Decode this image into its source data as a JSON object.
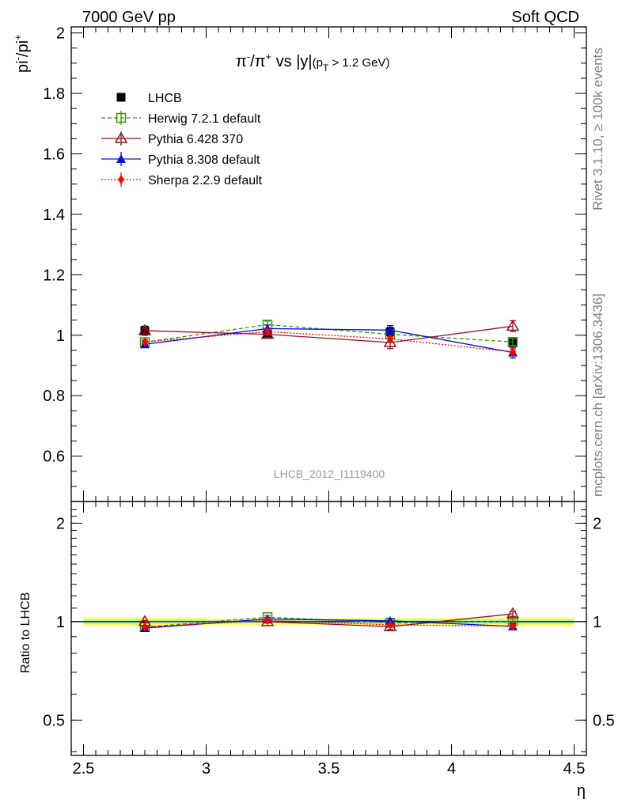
{
  "header": {
    "left": "7000 GeV pp",
    "right": "Soft QCD"
  },
  "side": {
    "rivet": "Rivet 3.1.10, ≥ 100k events",
    "mcplots": "mcplots.cern.ch [arXiv:1306.3436]"
  },
  "chart_data": {
    "type": "scatter",
    "title_parts": {
      "a": "π",
      "a_sup": "-",
      "b": "/π",
      "b_sup": "+",
      "c": " vs |y|",
      "d": "(p",
      "d_sub": "T",
      "e": " > 1.2 GeV)"
    },
    "ylabel_parts": {
      "a": "pi",
      "a_sup": "-",
      "b": "/pi",
      "b_sup": "+"
    },
    "ratio_ylabel": "Ratio to LHCB",
    "xlabel": "η",
    "watermark": "LHCB_2012_I1119400",
    "xlim": [
      2.45,
      4.55
    ],
    "ylim": [
      0.45,
      2.02
    ],
    "ratio_ylim": [
      0.39,
      2.33
    ],
    "x_ticks": [
      "2.5",
      "3",
      "3.5",
      "4",
      "4.5"
    ],
    "y_ticks": [
      "0.6",
      "0.8",
      "1",
      "1.2",
      "1.4",
      "1.6",
      "1.8",
      "2"
    ],
    "ratio_y_ticks": [
      "0.5",
      "1",
      "2"
    ],
    "x": [
      2.75,
      3.25,
      3.75,
      4.25
    ],
    "series": [
      {
        "name": "LHCB",
        "color": "#000000",
        "marker": "square-filled",
        "line": "none",
        "values": [
          1.015,
          1.003,
          1.011,
          0.975
        ],
        "errors": [
          0.015,
          0.012,
          0.015,
          0.015
        ]
      },
      {
        "name": "Herwig 7.2.1 default",
        "color": "#339900",
        "marker": "square-open",
        "line": "dashed",
        "values": [
          0.977,
          1.035,
          1.003,
          0.978
        ],
        "errors": [
          0.008,
          0.012,
          0.012,
          0.012
        ]
      },
      {
        "name": "Pythia 6.428 370",
        "color": "#991122",
        "marker": "triangle-open",
        "line": "solid",
        "values": [
          1.015,
          1.003,
          0.976,
          1.03
        ],
        "errors": [
          0.008,
          0.01,
          0.02,
          0.018
        ]
      },
      {
        "name": "Pythia 8.308 default",
        "color": "#0011dd",
        "marker": "triangle-filled",
        "line": "solid",
        "values": [
          0.97,
          1.022,
          1.017,
          0.943
        ],
        "errors": [
          0.008,
          0.012,
          0.015,
          0.018
        ]
      },
      {
        "name": "Sherpa 2.2.9 default",
        "color": "#ff0000",
        "marker": "diamond-filled",
        "line": "dotted",
        "values": [
          0.978,
          1.012,
          0.988,
          0.945
        ],
        "errors": [
          0.006,
          0.008,
          0.008,
          0.01
        ]
      }
    ],
    "ratio_band": {
      "outer_color": "#ffff66",
      "inner_color": "#aaf0a8",
      "rel_uncertainty_inner": [
        0.015,
        0.012,
        0.015,
        0.015
      ],
      "rel_uncertainty_outer": [
        0.03,
        0.022,
        0.026,
        0.03
      ]
    },
    "legend_position": "top-left"
  }
}
